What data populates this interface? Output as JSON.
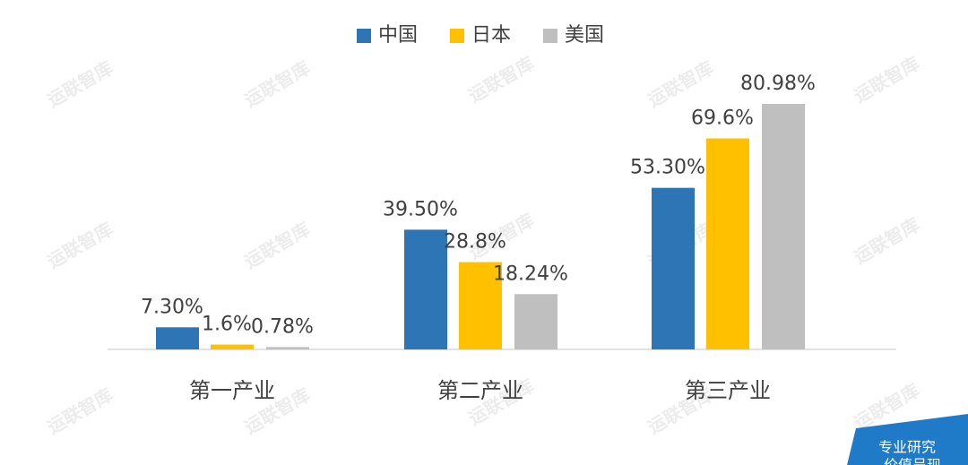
{
  "chart_data": {
    "type": "bar",
    "categories": [
      "第一产业",
      "第二产业",
      "第三产业"
    ],
    "series": [
      {
        "name": "中国",
        "color": "#2e75b6",
        "values": [
          7.3,
          39.5,
          53.3
        ],
        "value_labels": [
          "7.30%",
          "39.50%",
          "53.30%"
        ]
      },
      {
        "name": "日本",
        "color": "#ffc000",
        "values": [
          1.6,
          28.8,
          69.6
        ],
        "value_labels": [
          "1.6%",
          "28.8%",
          "69.6%"
        ]
      },
      {
        "name": "美国",
        "color": "#bfbfbf",
        "values": [
          0.78,
          18.24,
          80.98
        ],
        "value_labels": [
          "0.78%",
          "18.24%",
          "80.98%"
        ]
      }
    ],
    "legend": "top",
    "watermark": "运联智库",
    "badge": [
      "专业研究",
      "价值呈现"
    ]
  }
}
